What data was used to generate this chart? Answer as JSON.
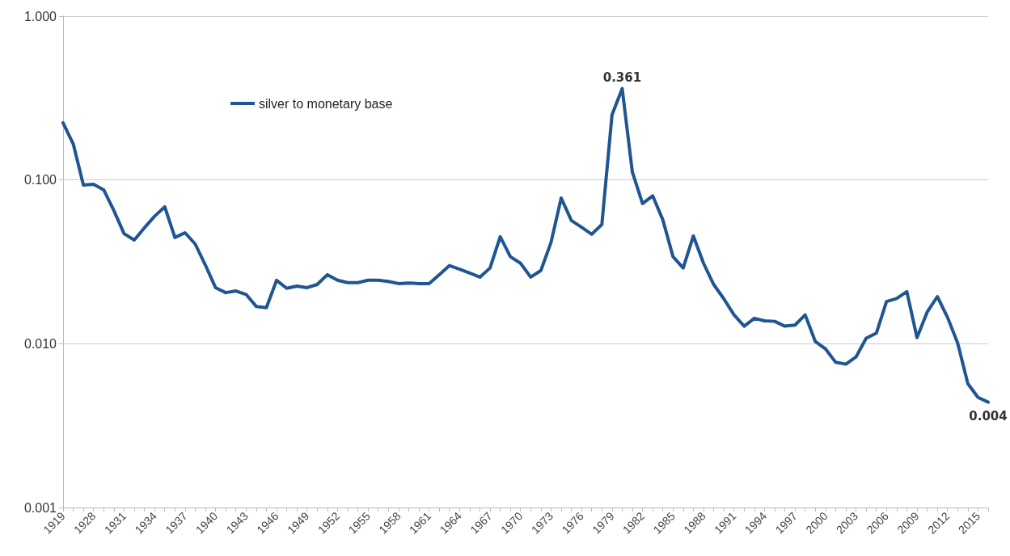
{
  "chart_data": {
    "type": "line",
    "log": "y",
    "grid": "y",
    "legend": "top left",
    "marker": "none",
    "line_style": "solid",
    "ylim": [
      0.001,
      1
    ],
    "yticks": [
      {
        "value": 0.001,
        "label": "0.001"
      },
      {
        "value": 0.01,
        "label": "0.010"
      },
      {
        "value": 0.1,
        "label": "0.100"
      },
      {
        "value": 1,
        "label": "1.000"
      }
    ],
    "categories": [
      "1919",
      null,
      null,
      "1928",
      null,
      null,
      "1931",
      null,
      null,
      "1934",
      null,
      null,
      "1937",
      null,
      null,
      "1940",
      null,
      null,
      "1943",
      null,
      null,
      "1946",
      null,
      null,
      "1949",
      null,
      null,
      "1952",
      null,
      null,
      "1955",
      null,
      null,
      "1958",
      null,
      null,
      "1961",
      null,
      null,
      "1964",
      null,
      null,
      "1967",
      null,
      null,
      "1970",
      null,
      null,
      "1973",
      null,
      null,
      "1976",
      null,
      null,
      "1979",
      null,
      null,
      "1982",
      null,
      null,
      "1985",
      null,
      null,
      "1988",
      null,
      null,
      "1991",
      null,
      null,
      "1994",
      null,
      null,
      "1997",
      null,
      null,
      "2000",
      null,
      null,
      "2003",
      null,
      null,
      "2006",
      null,
      null,
      "2009",
      null,
      null,
      "2012",
      null,
      null,
      "2015",
      null
    ],
    "series": [
      {
        "name": "silver to monetary base",
        "color": "#1f5591",
        "values": [
          0.223,
          0.166,
          0.093,
          0.094,
          0.087,
          0.065,
          0.047,
          0.043,
          0.051,
          0.06,
          0.0685,
          0.0445,
          0.0476,
          0.0406,
          0.0302,
          0.022,
          0.0205,
          0.021,
          0.02,
          0.0169,
          0.0166,
          0.0244,
          0.0218,
          0.0225,
          0.022,
          0.023,
          0.0264,
          0.0244,
          0.0236,
          0.0236,
          0.0244,
          0.0244,
          0.024,
          0.0233,
          0.0235,
          0.0233,
          0.0233,
          0.0264,
          0.03,
          0.0285,
          0.027,
          0.0255,
          0.029,
          0.045,
          0.034,
          0.031,
          0.0255,
          0.028,
          0.0416,
          0.0776,
          0.0565,
          0.0515,
          0.0466,
          0.0535,
          0.25,
          0.361,
          0.1117,
          0.0717,
          0.08,
          0.057,
          0.034,
          0.029,
          0.0455,
          0.031,
          0.023,
          0.0188,
          0.015,
          0.0128,
          0.0143,
          0.0138,
          0.0137,
          0.0128,
          0.013,
          0.015,
          0.0103,
          0.0093,
          0.0077,
          0.0075,
          0.0083,
          0.0108,
          0.0116,
          0.0181,
          0.0189,
          0.0208,
          0.0109,
          0.0156,
          0.0194,
          0.0145,
          0.0101,
          0.0057,
          0.0047,
          0.0044
        ],
        "value_labels": [
          null,
          null,
          null,
          null,
          null,
          null,
          null,
          null,
          null,
          null,
          null,
          null,
          null,
          null,
          null,
          null,
          null,
          null,
          null,
          null,
          null,
          null,
          null,
          null,
          null,
          null,
          null,
          null,
          null,
          null,
          null,
          null,
          null,
          null,
          null,
          null,
          null,
          null,
          null,
          null,
          null,
          null,
          null,
          null,
          null,
          null,
          null,
          null,
          null,
          null,
          null,
          null,
          null,
          null,
          null,
          "0.361",
          null,
          null,
          null,
          null,
          null,
          null,
          null,
          null,
          null,
          null,
          null,
          null,
          null,
          null,
          null,
          null,
          null,
          null,
          null,
          null,
          null,
          null,
          null,
          null,
          null,
          null,
          null,
          null,
          null,
          null,
          null,
          null,
          null,
          null,
          null,
          "0.004"
        ]
      }
    ]
  }
}
